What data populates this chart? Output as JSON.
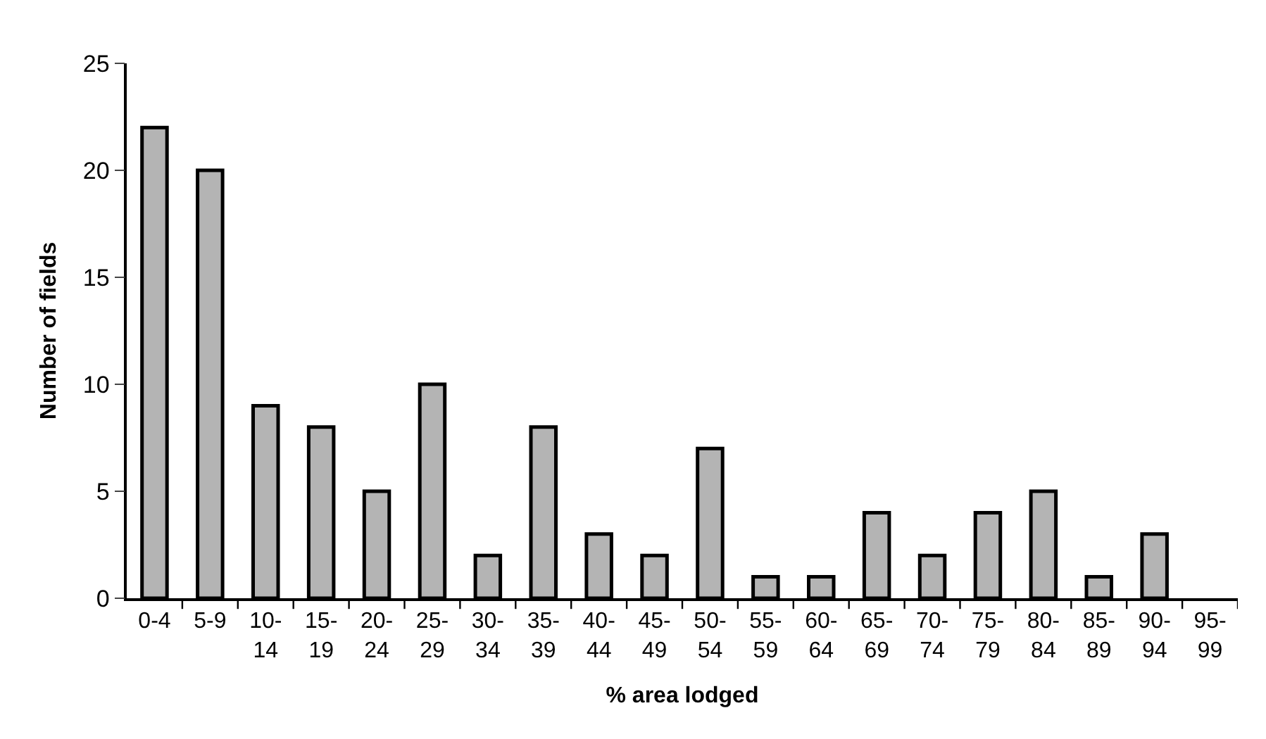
{
  "chart_data": {
    "type": "bar",
    "xlabel": "% area lodged",
    "ylabel": "Number of fields",
    "categories": [
      "0-4",
      "5-9",
      "10-14",
      "15-19",
      "20-24",
      "25-29",
      "30-34",
      "35-39",
      "40-44",
      "45-49",
      "50-54",
      "55-59",
      "60-64",
      "65-69",
      "70-74",
      "75-79",
      "80-84",
      "85-89",
      "90-94",
      "95-99"
    ],
    "values": [
      22,
      20,
      9,
      8,
      5,
      10,
      2,
      8,
      3,
      2,
      7,
      1,
      1,
      4,
      2,
      4,
      5,
      1,
      3,
      null
    ],
    "color": "#b4b4b4",
    "ylim": [
      0,
      25
    ],
    "yticks": [
      0,
      5,
      10,
      15,
      20,
      25
    ],
    "grid": false
  }
}
